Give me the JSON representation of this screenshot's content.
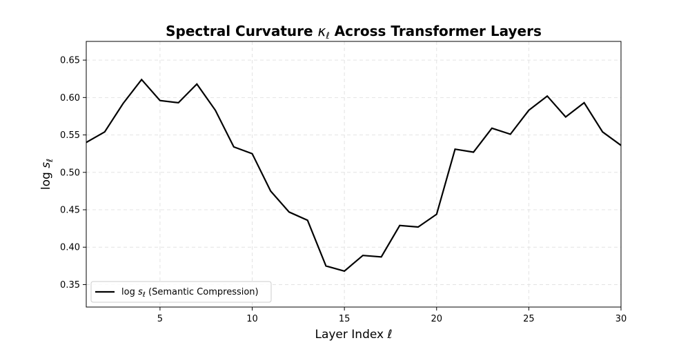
{
  "chart_data": {
    "type": "line",
    "title": "Spectral Curvature κ_ℓ Across Transformer Layers",
    "title_parts": {
      "pre": "Spectral Curvature ",
      "symbol": "κ",
      "sub": "ℓ",
      "post": " Across Transformer Layers"
    },
    "xlabel": "Layer Index ℓ",
    "ylabel": "log s_ℓ",
    "ylabel_parts": {
      "pre": "log ",
      "symbol": "s",
      "sub": "ℓ"
    },
    "xlim": [
      1,
      30
    ],
    "ylim": [
      0.32,
      0.675
    ],
    "x_ticks": [
      5,
      10,
      15,
      20,
      25,
      30
    ],
    "y_ticks": [
      0.35,
      0.4,
      0.45,
      0.5,
      0.55,
      0.6,
      0.65
    ],
    "y_tick_labels": [
      "0.35",
      "0.40",
      "0.45",
      "0.50",
      "0.55",
      "0.60",
      "0.65"
    ],
    "grid": true,
    "legend_position": "lower-left",
    "series": [
      {
        "name": "log s_ℓ (Semantic Compression)",
        "name_parts": {
          "pre": "log ",
          "symbol": "s",
          "sub": "ℓ",
          "post": " (Semantic Compression)"
        },
        "color": "#000000",
        "x": [
          1,
          2,
          3,
          4,
          5,
          6,
          7,
          8,
          9,
          10,
          11,
          12,
          13,
          14,
          15,
          16,
          17,
          18,
          19,
          20,
          21,
          22,
          23,
          24,
          25,
          26,
          27,
          28,
          29,
          30
        ],
        "y": [
          0.54,
          0.554,
          0.592,
          0.624,
          0.596,
          0.593,
          0.618,
          0.583,
          0.534,
          0.525,
          0.475,
          0.447,
          0.436,
          0.375,
          0.368,
          0.389,
          0.387,
          0.429,
          0.427,
          0.444,
          0.531,
          0.527,
          0.559,
          0.551,
          0.583,
          0.602,
          0.574,
          0.593,
          0.554,
          0.536
        ]
      }
    ]
  }
}
